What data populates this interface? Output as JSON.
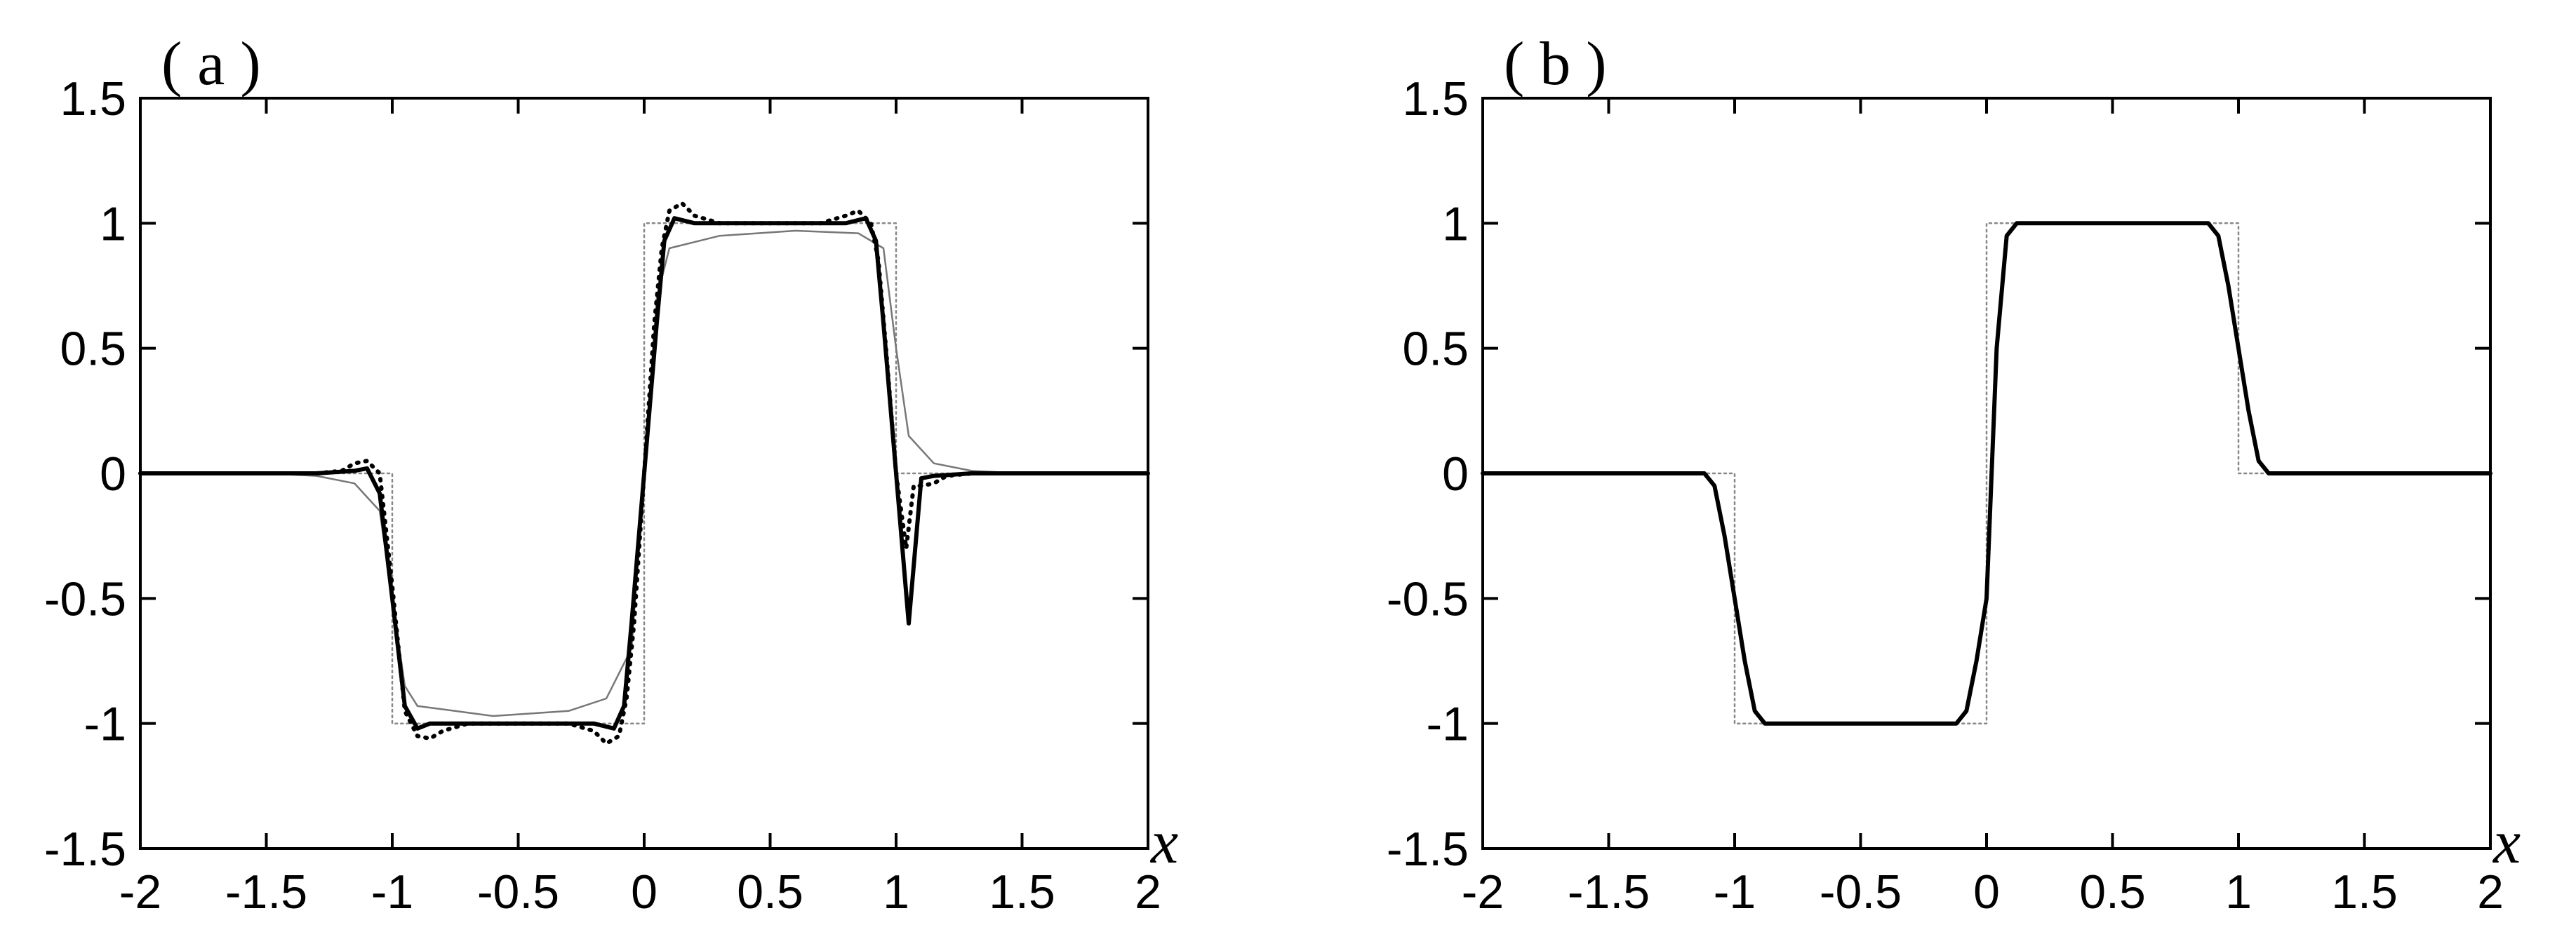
{
  "chart_data": [
    {
      "type": "line",
      "panel_label": "( a )",
      "xlabel": "x",
      "ylabel": "",
      "xlim": [
        -2,
        2
      ],
      "ylim": [
        -1.5,
        1.5
      ],
      "xticks": [
        "-2",
        "-1.5",
        "-1",
        "-0.5",
        "0",
        "0.5",
        "1",
        "1.5",
        "2"
      ],
      "yticks": [
        "1.5",
        "1",
        "0.5",
        "0",
        "-0.5",
        "-1",
        "-1.5"
      ],
      "series": [
        {
          "style": "dotted-thin-gray",
          "color": "#888888",
          "x": [
            -2,
            -1,
            -1,
            0,
            0,
            1,
            1,
            2
          ],
          "y": [
            0,
            0,
            -1,
            -1,
            1,
            1,
            0,
            0
          ]
        },
        {
          "style": "solid-thin-gray",
          "color": "#777777",
          "x": [
            -2,
            -1.5,
            -1.3,
            -1.15,
            -1.05,
            -1.0,
            -0.95,
            -0.9,
            -0.6,
            -0.3,
            -0.15,
            -0.05,
            0.0,
            0.05,
            0.1,
            0.3,
            0.6,
            0.85,
            0.95,
            1.0,
            1.05,
            1.15,
            1.3,
            1.5,
            2
          ],
          "y": [
            0,
            0,
            -0.01,
            -0.04,
            -0.15,
            -0.5,
            -0.85,
            -0.93,
            -0.97,
            -0.95,
            -0.9,
            -0.7,
            0.0,
            0.7,
            0.9,
            0.95,
            0.97,
            0.96,
            0.9,
            0.5,
            0.15,
            0.04,
            0.01,
            0,
            0
          ]
        },
        {
          "style": "solid-thick-black",
          "color": "#000000",
          "x": [
            -2,
            -1.3,
            -1.15,
            -1.1,
            -1.05,
            -1.0,
            -0.95,
            -0.9,
            -0.85,
            -0.8,
            -0.2,
            -0.12,
            -0.08,
            -0.05,
            0.0,
            0.05,
            0.08,
            0.12,
            0.2,
            0.8,
            0.88,
            0.92,
            0.95,
            1.0,
            1.05,
            1.1,
            1.15,
            1.3,
            2
          ],
          "y": [
            0,
            0,
            0.01,
            0.02,
            -0.08,
            -0.5,
            -0.93,
            -1.02,
            -1.0,
            -1.0,
            -1.0,
            -1.02,
            -0.93,
            -0.6,
            0.0,
            0.6,
            0.93,
            1.02,
            1.0,
            1.0,
            1.02,
            0.93,
            0.6,
            0.0,
            -0.6,
            -0.02,
            -0.01,
            0,
            0
          ]
        },
        {
          "style": "dotted-thick-black",
          "color": "#000000",
          "x": [
            -2,
            -1.3,
            -1.2,
            -1.15,
            -1.1,
            -1.05,
            -1.0,
            -0.95,
            -0.9,
            -0.85,
            -0.8,
            -0.7,
            -0.3,
            -0.2,
            -0.15,
            -0.1,
            -0.07,
            -0.04,
            0.0,
            0.04,
            0.07,
            0.1,
            0.15,
            0.2,
            0.3,
            0.7,
            0.8,
            0.85,
            0.9,
            0.93,
            0.96,
            1.0,
            1.04,
            1.07,
            1.1,
            1.15,
            1.2,
            1.3,
            2
          ],
          "y": [
            0,
            0,
            0.01,
            0.04,
            0.05,
            0.0,
            -0.45,
            -0.95,
            -1.05,
            -1.06,
            -1.03,
            -1.0,
            -1.0,
            -1.03,
            -1.08,
            -1.05,
            -0.9,
            -0.6,
            0.0,
            0.6,
            0.9,
            1.05,
            1.08,
            1.03,
            1.0,
            1.0,
            1.03,
            1.05,
            1.0,
            0.85,
            0.5,
            0.0,
            -0.3,
            -0.05,
            -0.05,
            -0.04,
            -0.01,
            0,
            0
          ]
        }
      ]
    },
    {
      "type": "line",
      "panel_label": "( b )",
      "xlabel": "x",
      "ylabel": "",
      "xlim": [
        -2,
        2
      ],
      "ylim": [
        -1.5,
        1.5
      ],
      "xticks": [
        "-2",
        "-1.5",
        "-1",
        "-0.5",
        "0",
        "0.5",
        "1",
        "1.5",
        "2"
      ],
      "yticks": [
        "1.5",
        "1",
        "0.5",
        "0",
        "-0.5",
        "-1",
        "-1.5"
      ],
      "series": [
        {
          "style": "dotted-thin-gray",
          "color": "#888888",
          "x": [
            -2,
            -1,
            -1,
            0,
            0,
            1,
            1,
            2
          ],
          "y": [
            0,
            0,
            -1,
            -1,
            1,
            1,
            0,
            0
          ]
        },
        {
          "style": "solid-thick-black",
          "color": "#000000",
          "x": [
            -2,
            -1.12,
            -1.08,
            -1.04,
            -1.0,
            -0.96,
            -0.92,
            -0.88,
            -0.12,
            -0.08,
            -0.04,
            0.0,
            0.04,
            0.08,
            0.12,
            0.88,
            0.92,
            0.96,
            1.0,
            1.04,
            1.08,
            1.12,
            2
          ],
          "y": [
            0,
            0,
            -0.05,
            -0.25,
            -0.5,
            -0.75,
            -0.95,
            -1.0,
            -1.0,
            -0.95,
            -0.75,
            -0.5,
            0.5,
            0.95,
            1.0,
            1.0,
            0.95,
            0.75,
            0.5,
            0.25,
            0.05,
            0.0,
            0
          ]
        }
      ]
    }
  ]
}
